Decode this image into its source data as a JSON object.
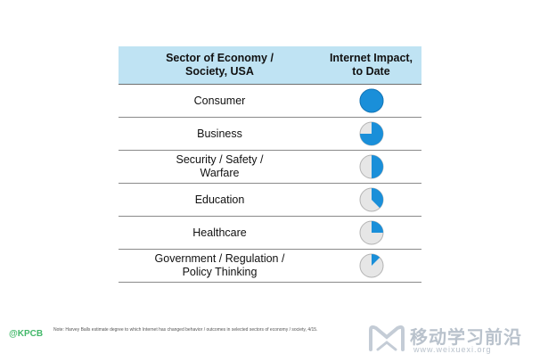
{
  "table": {
    "headers": [
      "Sector of Economy /\nSociety, USA",
      "Internet Impact,\nto Date"
    ],
    "rows": [
      {
        "sector": "Consumer",
        "impact": 1.0
      },
      {
        "sector": "Business",
        "impact": 0.75
      },
      {
        "sector": "Security / Safety /\nWarfare",
        "impact": 0.5
      },
      {
        "sector": "Education",
        "impact": 0.375
      },
      {
        "sector": "Healthcare",
        "impact": 0.25
      },
      {
        "sector": "Government / Regulation /\nPolicy Thinking",
        "impact": 0.125
      }
    ]
  },
  "colors": {
    "header_bg": "#bfe3f3",
    "pie_fill": "#1a8fd9",
    "pie_empty": "#e6e6e6",
    "pie_border": "#b3b3b3"
  },
  "icons": {
    "pie": "pie-chart-icon"
  },
  "footer": {
    "note": "Note: Harvey Balls estimate degree to which Internet has changed behavior / outcomes in selected sectors of economy / society, 4/15.",
    "left_logo": "@KPCB",
    "right_logo_cn": "移动学习前沿",
    "right_logo_url": "www.weixuexi.org"
  }
}
